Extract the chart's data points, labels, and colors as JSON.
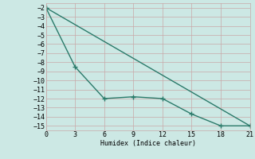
{
  "line1_x": [
    0,
    21
  ],
  "line1_y": [
    -2,
    -15
  ],
  "line2_x": [
    0,
    3,
    6,
    9,
    12,
    15,
    18,
    21
  ],
  "line2_y": [
    -2,
    -8.5,
    -12,
    -11.8,
    -12,
    -13.7,
    -15,
    -15
  ],
  "color": "#2a7a6a",
  "bg_color": "#cce8e4",
  "grid_color": "#c8a8a8",
  "xlabel": "Humidex (Indice chaleur)",
  "xlim": [
    0,
    21
  ],
  "ylim": [
    -15.5,
    -1.5
  ],
  "xticks": [
    0,
    3,
    6,
    9,
    12,
    15,
    18,
    21
  ],
  "yticks": [
    -2,
    -3,
    -4,
    -5,
    -6,
    -7,
    -8,
    -9,
    -10,
    -11,
    -12,
    -13,
    -14,
    -15
  ],
  "fontsize": 6,
  "line_width": 1.0,
  "marker_size": 4
}
